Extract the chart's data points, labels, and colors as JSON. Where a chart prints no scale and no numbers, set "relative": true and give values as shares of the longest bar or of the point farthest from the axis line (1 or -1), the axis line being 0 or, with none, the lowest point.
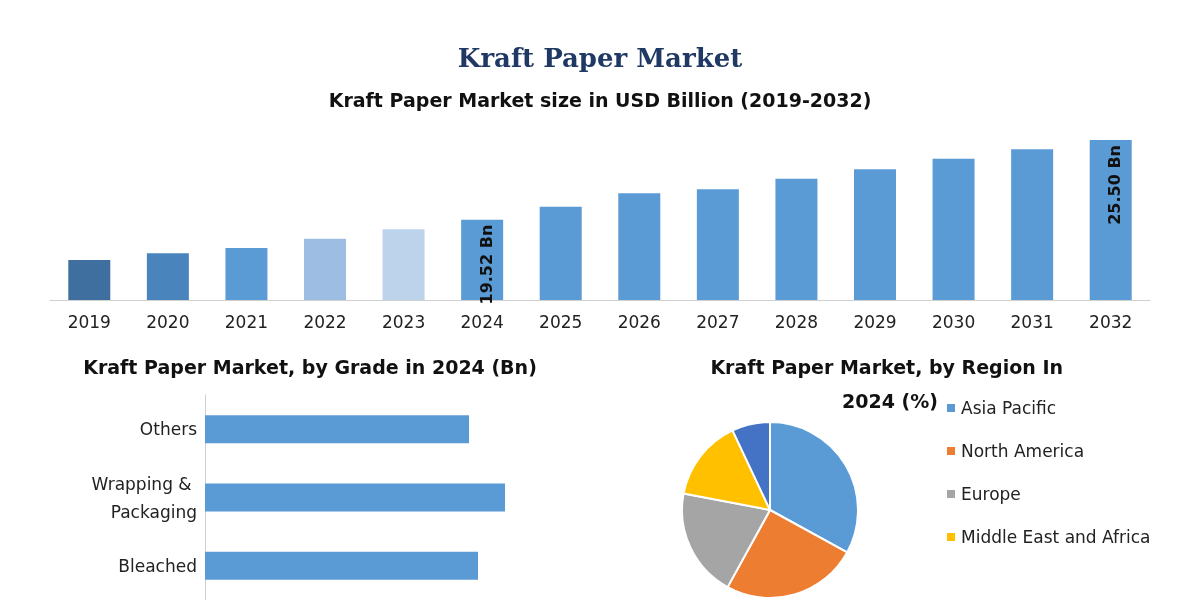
{
  "chart_data": [
    {
      "type": "bar",
      "title": "Kraft Paper Market",
      "subtitle": "Kraft Paper Market size in USD Billion (2019-2032)",
      "categories": [
        "2019",
        "2020",
        "2021",
        "2022",
        "2023",
        "2024",
        "2025",
        "2026",
        "2027",
        "2028",
        "2029",
        "2030",
        "2031",
        "2032"
      ],
      "values": [
        16.5,
        17.0,
        17.4,
        18.1,
        18.8,
        19.52,
        20.5,
        21.5,
        21.8,
        22.6,
        23.3,
        24.1,
        24.8,
        25.5
      ],
      "colors": [
        "#3f6f9f",
        "#4a84bc",
        "#5b9bd5",
        "#9dbde2",
        "#bdd3ec",
        "#5b9bd5",
        "#5b9bd5",
        "#5b9bd5",
        "#5b9bd5",
        "#5b9bd5",
        "#5b9bd5",
        "#5b9bd5",
        "#5b9bd5",
        "#5b9bd5"
      ],
      "value_labels": [
        null,
        null,
        null,
        null,
        null,
        "19.52 Bn",
        null,
        null,
        null,
        null,
        null,
        null,
        null,
        "25.50 Bn"
      ],
      "ylim": [
        13.5,
        25.5
      ],
      "tick_labels": "x",
      "legend": false
    },
    {
      "type": "bar",
      "orientation": "horizontal",
      "relative": true,
      "title": "Kraft Paper Market, by Grade in 2024 (Bn)",
      "categories": [
        "Others",
        "Wrapping & Packaging",
        "Bleached"
      ],
      "values": [
        0.88,
        1,
        0.91
      ],
      "color": "#5b9bd5",
      "legend": false
    },
    {
      "type": "pie",
      "title": "Kraft Paper Market, by Region In 2024 (%)",
      "categories": [
        "Asia Pacific",
        "North America",
        "Europe",
        "Middle East and Africa",
        null
      ],
      "values": [
        33,
        25,
        20,
        15,
        7
      ],
      "colors": [
        "#5b9bd5",
        "#ed7d31",
        "#a5a5a5",
        "#ffc000",
        "#4472c4"
      ],
      "legend": "right"
    }
  ]
}
